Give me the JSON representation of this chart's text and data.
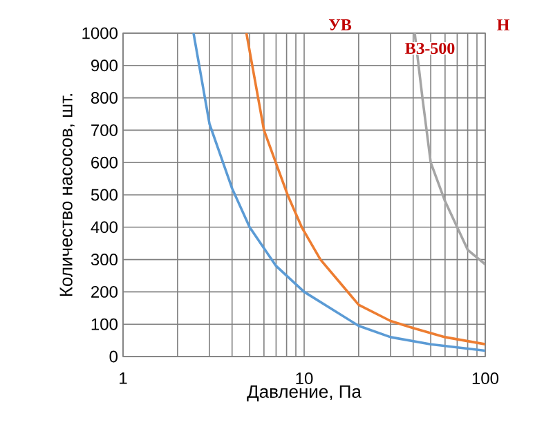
{
  "chart_data": {
    "type": "line",
    "xlabel": "Давление, Па",
    "ylabel": "Количество насосов, шт.",
    "log": "x",
    "xlim": [
      1,
      100
    ],
    "xticks": [
      1,
      10,
      100
    ],
    "ylim": [
      0,
      1000
    ],
    "yticks": [
      0,
      100,
      200,
      300,
      400,
      500,
      600,
      700,
      800,
      900,
      1000
    ],
    "grid": true,
    "marker": "none",
    "line_style": "solid",
    "annotations": [
      "УВ",
      "ВЗ-500",
      "Н"
    ],
    "series": [
      {
        "color": "#5b9bd5",
        "x": [
          2.45,
          3,
          4,
          5,
          7,
          10,
          20,
          30,
          50,
          100
        ],
        "values": [
          1000,
          720,
          520,
          400,
          280,
          200,
          95,
          60,
          38,
          18
        ]
      },
      {
        "color": "#ed7d31",
        "x": [
          4.8,
          6,
          8.1,
          9.7,
          12.3,
          20,
          30,
          40,
          60,
          100
        ],
        "values": [
          1000,
          700,
          500,
          400,
          300,
          160,
          110,
          88,
          60,
          38
        ]
      },
      {
        "color": "#a5a5a5",
        "x": [
          40.8,
          45,
          50,
          60,
          70,
          80,
          100
        ],
        "values": [
          1000,
          800,
          600,
          480,
          400,
          330,
          285
        ]
      }
    ]
  }
}
